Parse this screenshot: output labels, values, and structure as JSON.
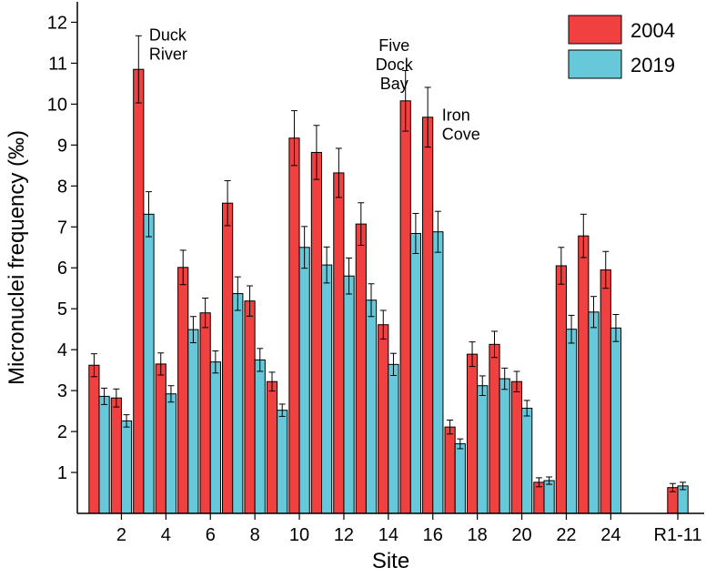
{
  "chart_data": {
    "type": "bar",
    "title": "",
    "xlabel": "Site",
    "ylabel": "Micronuclei frequency (‰)",
    "ylim": [
      0,
      12.5
    ],
    "yticks": [
      1,
      2,
      3,
      4,
      5,
      6,
      7,
      8,
      9,
      10,
      11,
      12
    ],
    "categories": [
      "1",
      "2",
      "3",
      "4",
      "5",
      "6",
      "7",
      "8",
      "9",
      "10",
      "11",
      "12",
      "13",
      "14",
      "15",
      "16",
      "17",
      "18",
      "19",
      "20",
      "21",
      "22",
      "23",
      "24",
      "R1-11"
    ],
    "x_tick_labels": [
      {
        "category": "2",
        "label": "2"
      },
      {
        "category": "4",
        "label": "4"
      },
      {
        "category": "6",
        "label": "6"
      },
      {
        "category": "8",
        "label": "8"
      },
      {
        "category": "10",
        "label": "10"
      },
      {
        "category": "12",
        "label": "12"
      },
      {
        "category": "14",
        "label": "14"
      },
      {
        "category": "16",
        "label": "16"
      },
      {
        "category": "18",
        "label": "18"
      },
      {
        "category": "20",
        "label": "20"
      },
      {
        "category": "22",
        "label": "22"
      },
      {
        "category": "24",
        "label": "24"
      },
      {
        "category": "R1-11",
        "label": "R1-11"
      }
    ],
    "series": [
      {
        "name": "2004",
        "color": "#f04040",
        "values": [
          3.62,
          2.82,
          10.85,
          3.65,
          6.01,
          4.9,
          7.58,
          5.19,
          3.22,
          9.17,
          8.82,
          8.32,
          7.07,
          4.61,
          10.08,
          9.68,
          2.11,
          3.89,
          4.13,
          3.22,
          0.76,
          6.05,
          6.78,
          5.95,
          0.63
        ],
        "errors": [
          0.28,
          0.22,
          0.82,
          0.27,
          0.42,
          0.36,
          0.55,
          0.37,
          0.23,
          0.67,
          0.66,
          0.6,
          0.52,
          0.35,
          0.74,
          0.73,
          0.17,
          0.3,
          0.32,
          0.25,
          0.11,
          0.45,
          0.53,
          0.45,
          0.1
        ]
      },
      {
        "name": "2019",
        "color": "#66c8d8",
        "values": [
          2.86,
          2.26,
          7.31,
          2.92,
          4.49,
          3.7,
          5.37,
          3.75,
          2.52,
          6.5,
          6.07,
          5.8,
          5.21,
          3.64,
          6.84,
          6.88,
          1.7,
          3.12,
          3.29,
          2.57,
          0.8,
          4.5,
          4.92,
          4.53,
          0.67
        ],
        "errors": [
          0.2,
          0.15,
          0.55,
          0.2,
          0.32,
          0.27,
          0.41,
          0.28,
          0.15,
          0.51,
          0.44,
          0.44,
          0.4,
          0.27,
          0.49,
          0.5,
          0.12,
          0.24,
          0.26,
          0.19,
          0.09,
          0.34,
          0.38,
          0.33,
          0.09
        ]
      }
    ],
    "legend": {
      "position": "top-right",
      "entries": [
        "2004",
        "2019"
      ]
    },
    "annotations": [
      {
        "lines": [
          "Duck",
          "River"
        ],
        "category": "3",
        "value": 11.55
      },
      {
        "lines": [
          "Five",
          "Dock",
          "Bay"
        ],
        "category": "15",
        "value": 11.3
      },
      {
        "lines": [
          "Iron",
          "Cove"
        ],
        "category": "16",
        "value": 9.6
      }
    ],
    "grid": false
  }
}
